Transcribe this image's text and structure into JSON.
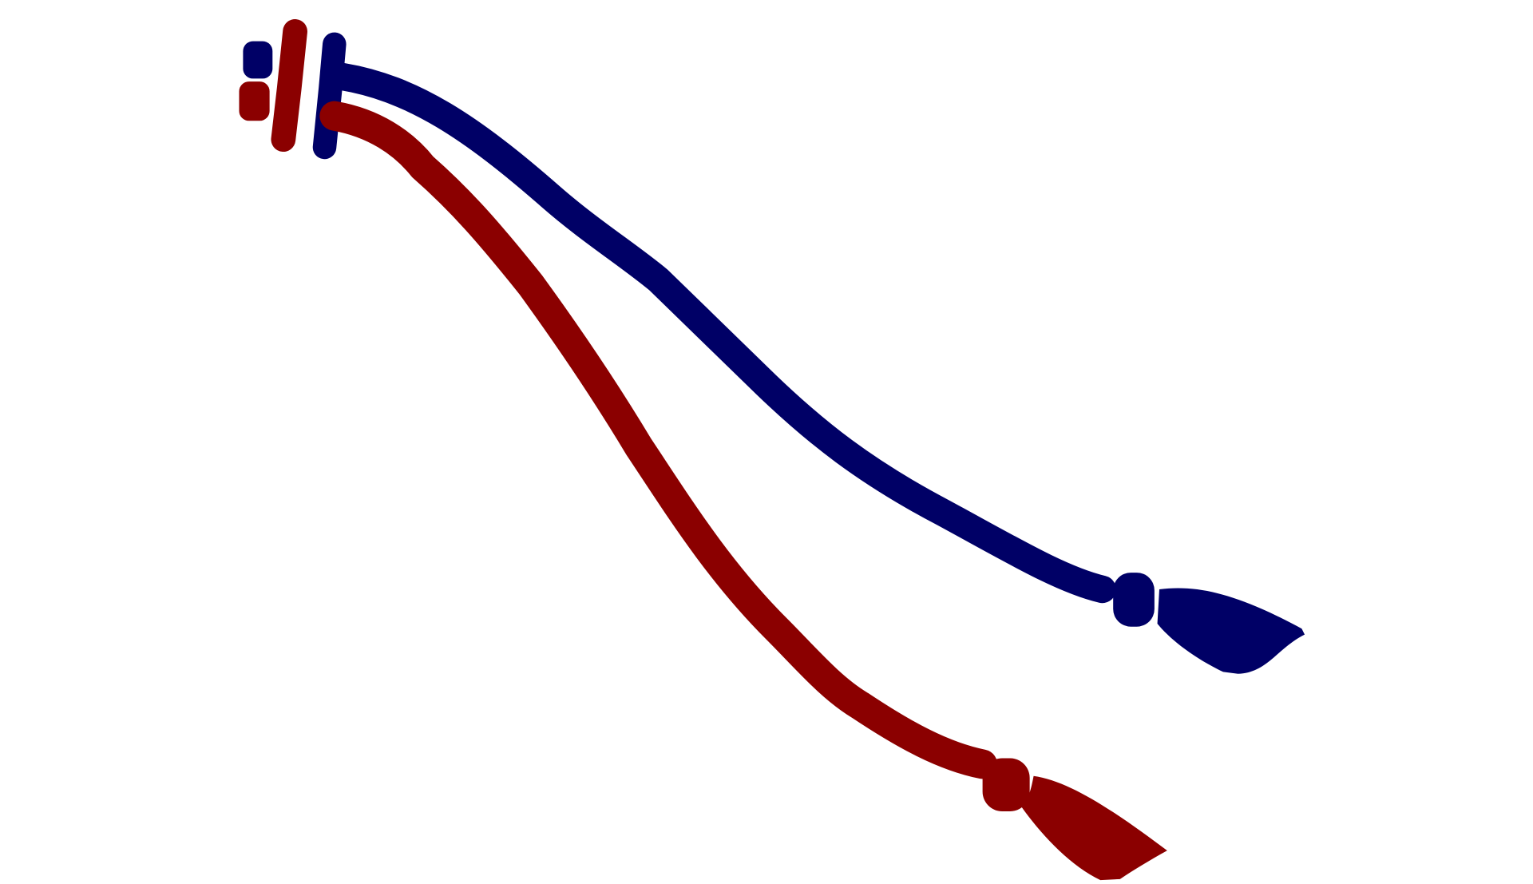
{
  "colors": {
    "background": "#ffffff",
    "red_stroke": "#8b0000",
    "blue_stroke": "#000066"
  },
  "strokes": [
    {
      "name": "red",
      "color_key": "red_stroke"
    },
    {
      "name": "blue",
      "color_key": "blue_stroke"
    }
  ]
}
